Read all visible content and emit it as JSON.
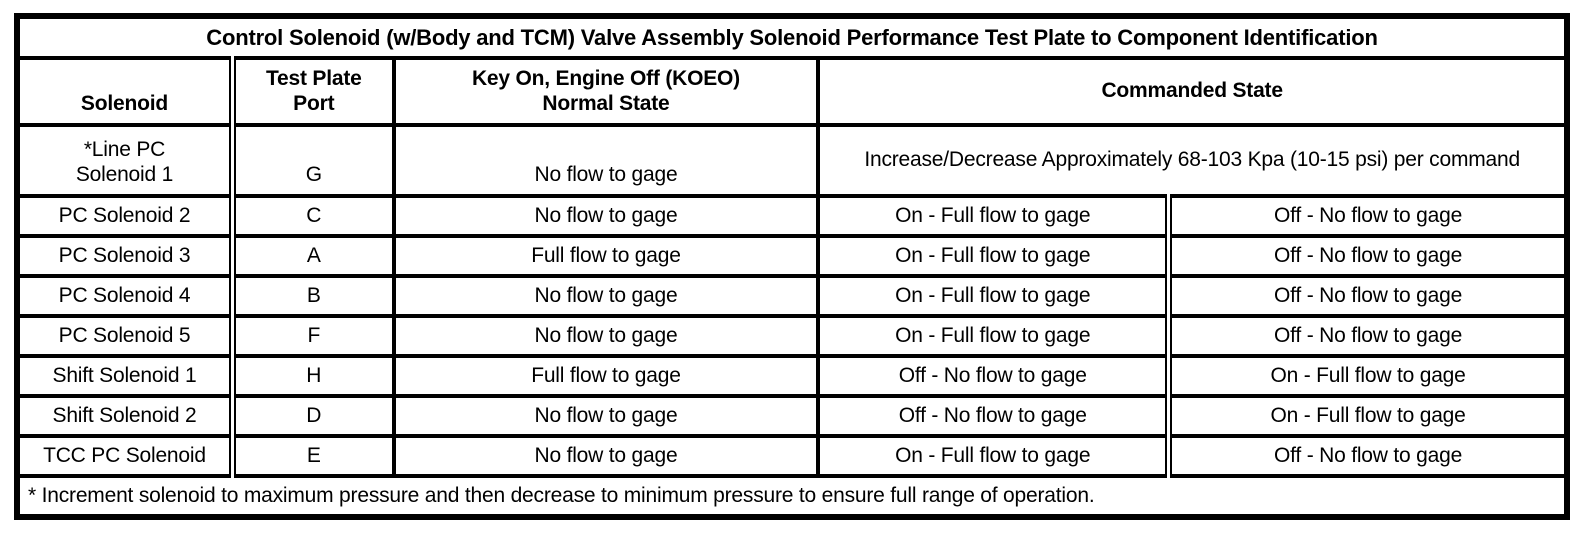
{
  "title": "Control Solenoid (w/Body and TCM) Valve Assembly Solenoid Performance Test Plate to Component Identification",
  "columns": {
    "solenoid": "Solenoid",
    "port": "Test Plate\nPort",
    "koeo": "Key On, Engine Off (KOEO)\nNormal State",
    "commanded": "Commanded State"
  },
  "rows": [
    {
      "solenoid": "*Line PC\nSolenoid 1",
      "port": "G",
      "koeo": "No flow to gage",
      "commanded": "Increase/Decrease Approximately 68-103 Kpa (10-15 psi) per command"
    },
    {
      "solenoid": "PC Solenoid 2",
      "port": "C",
      "koeo": "No flow to gage",
      "commanded_left": "On - Full flow to gage",
      "commanded_right": "Off - No flow to gage"
    },
    {
      "solenoid": "PC Solenoid 3",
      "port": "A",
      "koeo": "Full flow to gage",
      "commanded_left": "On - Full flow to gage",
      "commanded_right": "Off - No flow to gage"
    },
    {
      "solenoid": "PC Solenoid 4",
      "port": "B",
      "koeo": "No flow to gage",
      "commanded_left": "On - Full flow to gage",
      "commanded_right": "Off - No flow to gage"
    },
    {
      "solenoid": "PC Solenoid 5",
      "port": "F",
      "koeo": "No flow to gage",
      "commanded_left": "On - Full flow to gage",
      "commanded_right": "Off - No flow to gage"
    },
    {
      "solenoid": "Shift Solenoid 1",
      "port": "H",
      "koeo": "Full flow to gage",
      "commanded_left": "Off - No flow to gage",
      "commanded_right": "On - Full flow to gage"
    },
    {
      "solenoid": "Shift Solenoid 2",
      "port": "D",
      "koeo": "No flow to gage",
      "commanded_left": "Off - No flow to gage",
      "commanded_right": "On - Full flow to gage"
    },
    {
      "solenoid": "TCC PC Solenoid",
      "port": "E",
      "koeo": "No flow to gage",
      "commanded_left": "On - Full flow to gage",
      "commanded_right": "Off - No flow to gage"
    }
  ],
  "footnote": "* Increment solenoid to maximum pressure and then decrease to minimum pressure to ensure full range of operation."
}
